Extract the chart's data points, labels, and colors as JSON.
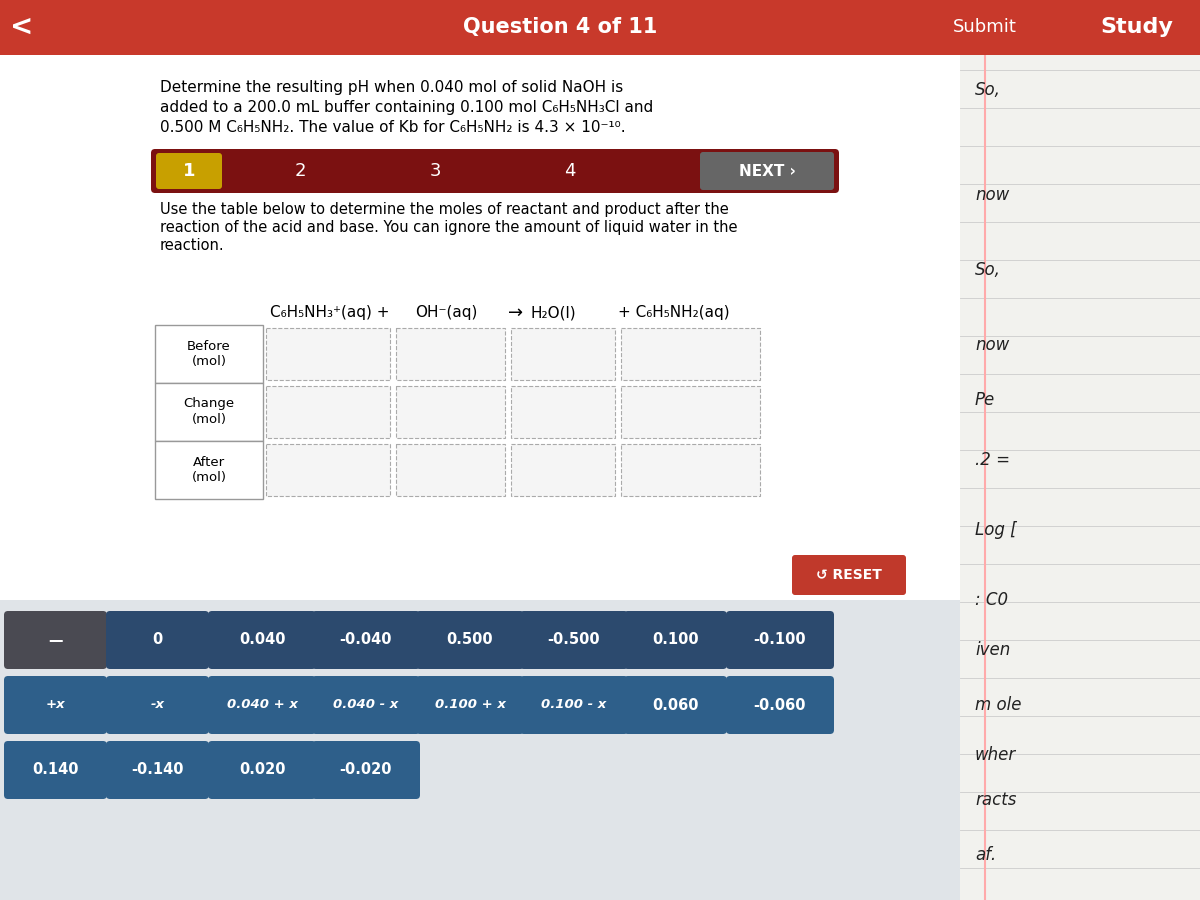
{
  "title_bar_color": "#C8392B",
  "title_text": "Question 4 of 11",
  "submit_text": "Submit",
  "study_text": "Study",
  "back_arrow": "<",
  "bg_color": "#E8E8E8",
  "main_bg": "#FFFFFF",
  "problem_text_line1": "Determine the resulting pH when 0.040 mol of solid NaOH is",
  "problem_text_line2": "added to a 200.0 mL buffer containing 0.100 mol C₆H₅NH₃Cl and",
  "problem_text_line3": "0.500 M C₆H₅NH₂. The value of Kb for C₆H₅NH₂ is 4.3 × 10⁻¹⁰.",
  "nav_bar_color": "#7B1111",
  "nav_highlight_color": "#C8A000",
  "next_text": "NEXT ›",
  "instruction_line1": "Use the table below to determine the moles of reactant and product after the",
  "instruction_line2": "reaction of the acid and base. You can ignore the amount of liquid water in the",
  "instruction_line3": "reaction.",
  "eq_col1": "C₆H₅NH₃⁺(aq) +",
  "eq_col2": "OH⁻(aq)",
  "eq_arrow": "→",
  "eq_col3": "H₂O(l)",
  "eq_col4": "+ C₆H₅NH₂(aq)",
  "row_labels": [
    "Before\n(mol)",
    "Change\n(mol)",
    "After\n(mol)"
  ],
  "reset_btn_color": "#C0392B",
  "reset_text": "↺ RESET",
  "btn_dark_color": "#555555",
  "btn_blue_color": "#2C4A6E",
  "btn_teal_color": "#2E5F8A",
  "row1_buttons": [
    "—",
    "0",
    "0.040",
    "-0.040",
    "0.500",
    "-0.500",
    "0.100",
    "-0.100"
  ],
  "row2_buttons": [
    "+x",
    "-x",
    "0.040 + x",
    "0.040 - x",
    "0.100 + x",
    "0.100 - x",
    "0.060",
    "-0.060"
  ],
  "row3_buttons": [
    "0.140",
    "-0.140",
    "0.020",
    "-0.020"
  ],
  "right_texts": [
    [
      975,
      90,
      "So,"
    ],
    [
      975,
      195,
      "now"
    ],
    [
      975,
      270,
      "So,"
    ],
    [
      975,
      345,
      "now"
    ],
    [
      975,
      400,
      "Pe"
    ],
    [
      975,
      460,
      ".2 ="
    ],
    [
      975,
      530,
      "Log ["
    ],
    [
      975,
      600,
      ": C0"
    ],
    [
      975,
      650,
      "iven"
    ],
    [
      975,
      705,
      "m ole"
    ],
    [
      975,
      755,
      "wher"
    ],
    [
      975,
      800,
      "racts"
    ],
    [
      975,
      855,
      "af."
    ]
  ]
}
